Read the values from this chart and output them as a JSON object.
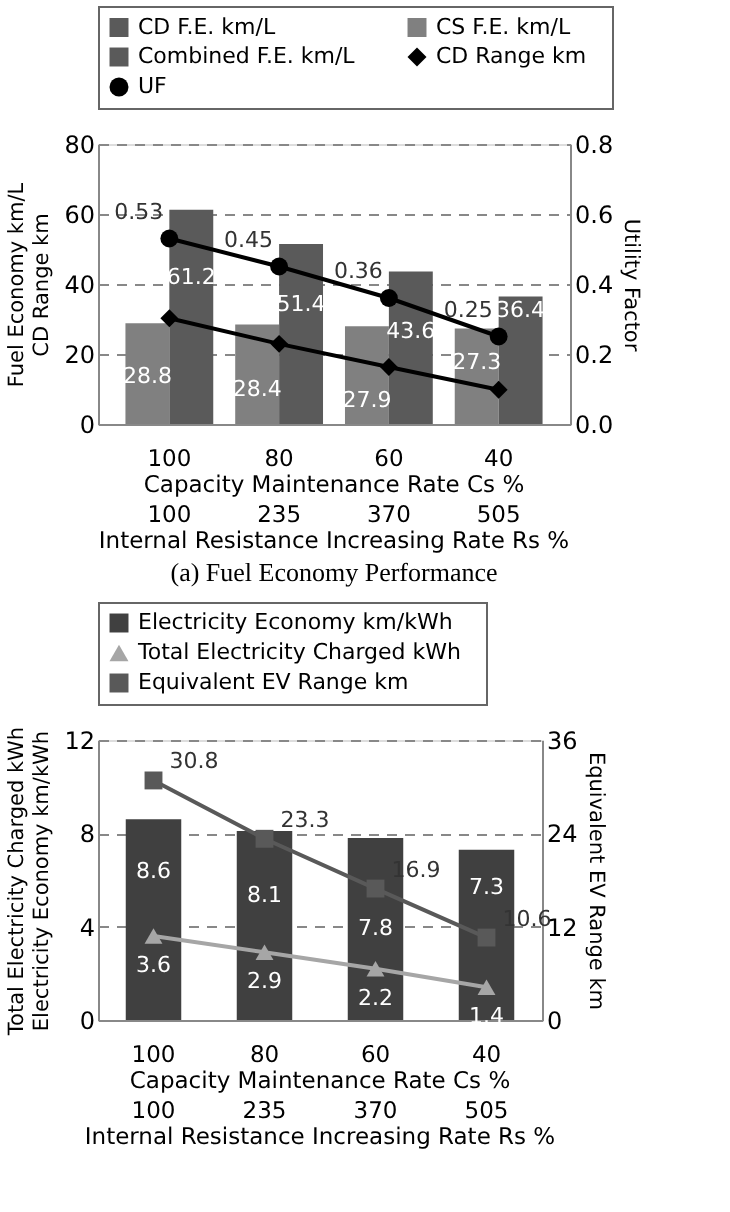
{
  "chart_data": [
    {
      "type": "bar",
      "categories": [
        "100\n100",
        "80\n235",
        "60\n370",
        "40\n505"
      ],
      "xlabel": "Capacity Maintenance Rate  Cs  %\nInternal Resistance Increasing Rate  Rs  %",
      "ylabel": "Fuel Economy  km/L\nCD Range  km",
      "y2label": "Utility Factor",
      "title": "(a) Fuel Economy Performance",
      "ylim": [
        0,
        80
      ],
      "yticks": [
        0,
        20,
        40,
        60,
        80
      ],
      "y2lim": [
        0,
        0.8
      ],
      "y2ticks": [
        {
          "value": 0,
          "label": "0.0"
        },
        0.2,
        0.4,
        0.6,
        0.8
      ],
      "grid": "y",
      "legend": "top",
      "series": [
        {
          "name": "CD F.E.   km/L",
          "color": "#5a5a5a",
          "values": [
            null,
            null,
            null,
            null
          ]
        },
        {
          "name": "CS F.E.   km/L",
          "color": "#808080",
          "values": [
            28.8,
            28.4,
            27.9,
            27.3
          ],
          "data_labels": true
        },
        {
          "name": "Combined F.E.   km/L",
          "color": "#5a5a5a",
          "values": [
            61.2,
            51.4,
            43.6,
            36.4
          ],
          "data_labels": true
        },
        {
          "name": "CD Range   km",
          "type": "line",
          "color": "#000000",
          "marker": "diamond",
          "values": [
            30.2,
            22.9,
            16.3,
            9.8
          ]
        },
        {
          "name": "UF",
          "type": "line",
          "color": "#000000",
          "marker": "circle",
          "axis": "y2",
          "values": [
            0.53,
            0.45,
            0.36,
            0.25
          ],
          "data_labels": true
        }
      ]
    },
    {
      "type": "bar",
      "categories": [
        "100\n100",
        "80\n235",
        "60\n370",
        "40\n505"
      ],
      "xlabel": "Capacity Maintenance Rate  Cs  %\nInternal Resistance Increasing Rate  Rs  %",
      "ylabel": "Total Electricity Charged  kWh\nElectricity Economy  km/kWh",
      "y2label": "Equivalent EV Range  km",
      "ylim": [
        0,
        12
      ],
      "yticks": [
        0,
        4,
        8,
        12
      ],
      "y2lim": [
        0,
        36
      ],
      "y2ticks": [
        0,
        12,
        24,
        36
      ],
      "grid": "y",
      "legend": "top",
      "series": [
        {
          "name": "Electricity Economy   km/kWh",
          "color": "#404040",
          "values": [
            8.6,
            8.1,
            7.8,
            7.3
          ],
          "data_labels": true
        },
        {
          "name": "Total Electricity Charged   kWh",
          "type": "line",
          "color": "#a6a6a6",
          "marker": "triangle",
          "values": [
            3.6,
            2.9,
            2.2,
            1.4
          ],
          "data_labels": true
        },
        {
          "name": "Equivalent EV Range   km",
          "type": "line",
          "color": "#595959",
          "marker": "square",
          "axis": "y2",
          "values": [
            30.8,
            23.3,
            16.9,
            10.6
          ],
          "data_labels": true
        }
      ]
    }
  ]
}
